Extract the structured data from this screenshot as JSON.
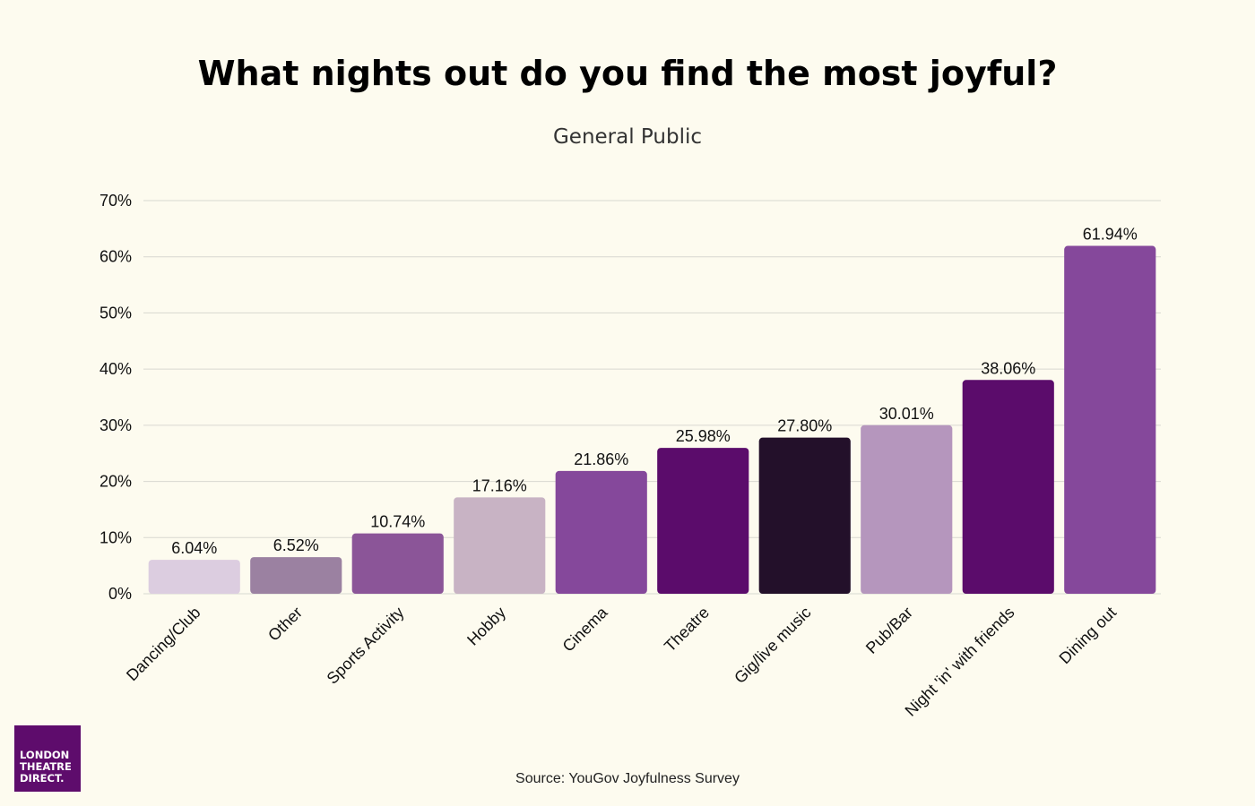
{
  "chart_data": {
    "type": "bar",
    "title": "What nights out do you find the most joyful?",
    "subtitle": "General Public",
    "categories": [
      "Dancing/Club",
      "Other",
      "Sports Activity",
      "Hobby",
      "Cinema",
      "Theatre",
      "Gig/live music",
      "Pub/Bar",
      "Night 'in' with friends",
      "Dining out"
    ],
    "values": [
      6.04,
      6.52,
      10.74,
      17.16,
      21.86,
      25.98,
      27.8,
      30.01,
      38.06,
      61.94
    ],
    "value_labels": [
      "6.04%",
      "6.52%",
      "10.74%",
      "17.16%",
      "21.86%",
      "25.98%",
      "27.80%",
      "30.01%",
      "38.06%",
      "61.94%"
    ],
    "colors": [
      "#dccde0",
      "#9b81a1",
      "#8b5598",
      "#c8b3c4",
      "#85489b",
      "#5b0c6b",
      "#23102a",
      "#b596bd",
      "#5b0c6b",
      "#85489b"
    ],
    "ylim": [
      0,
      70
    ],
    "yticks": [
      0,
      10,
      20,
      30,
      40,
      50,
      60,
      70
    ],
    "ytick_labels": [
      "0%",
      "10%",
      "20%",
      "30%",
      "40%",
      "50%",
      "60%",
      "70%"
    ],
    "grid": true,
    "legend": "none"
  },
  "source": "Source: YouGov Joyfulness Survey",
  "logo": {
    "text_lines": [
      "LONDON",
      "THEATRE",
      "DIRECT."
    ],
    "background": "#5e0c6c"
  },
  "colors": {
    "background": "#fdfbef",
    "grid": "#d8d8d0"
  }
}
